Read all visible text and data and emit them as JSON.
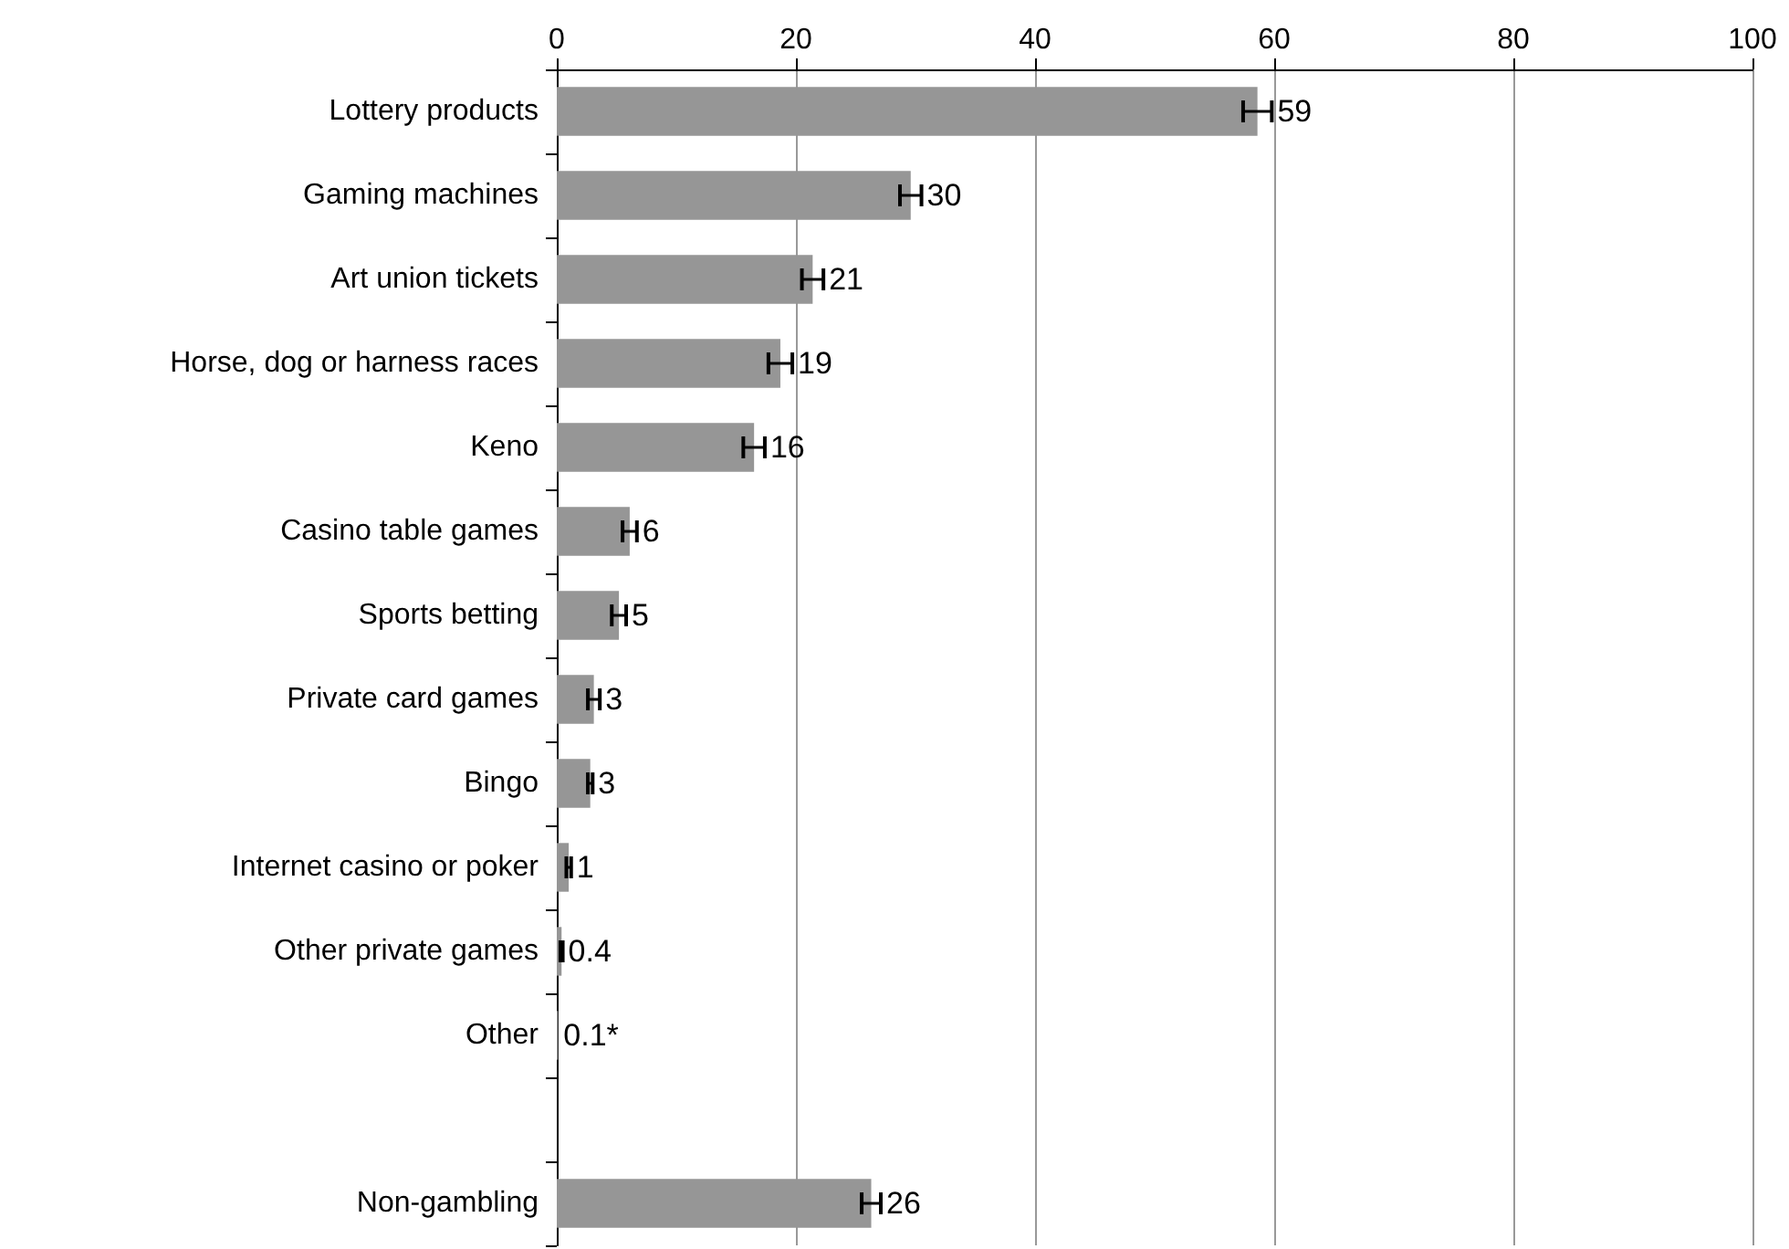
{
  "chart_data": {
    "type": "bar",
    "orientation": "horizontal",
    "categories": [
      "Lottery products",
      "Gaming machines",
      "Art union tickets",
      "Horse, dog or harness races",
      "Keno",
      "Casino table games",
      "Sports betting",
      "Private card games",
      "Bingo",
      "Internet casino or poker",
      "Other private games",
      "Other",
      null,
      "Non-gambling"
    ],
    "values": [
      58.6,
      29.6,
      21.4,
      18.7,
      16.5,
      6.1,
      5.2,
      3.1,
      2.8,
      1.0,
      0.4,
      0.1,
      null,
      26.3
    ],
    "errors": [
      1.2,
      0.9,
      0.9,
      1.0,
      0.9,
      0.6,
      0.6,
      0.5,
      0.2,
      0.2,
      0.1,
      null,
      null,
      0.8
    ],
    "value_labels": [
      "59",
      "30",
      "21",
      "19",
      "16",
      "6",
      "5",
      "3",
      "3",
      "1",
      "0.4",
      "0.1*",
      null,
      "26"
    ],
    "color": "#969696",
    "xlim": [
      0,
      100
    ],
    "xticks": [
      0,
      20,
      40,
      60,
      80,
      100
    ],
    "grid": "x"
  }
}
